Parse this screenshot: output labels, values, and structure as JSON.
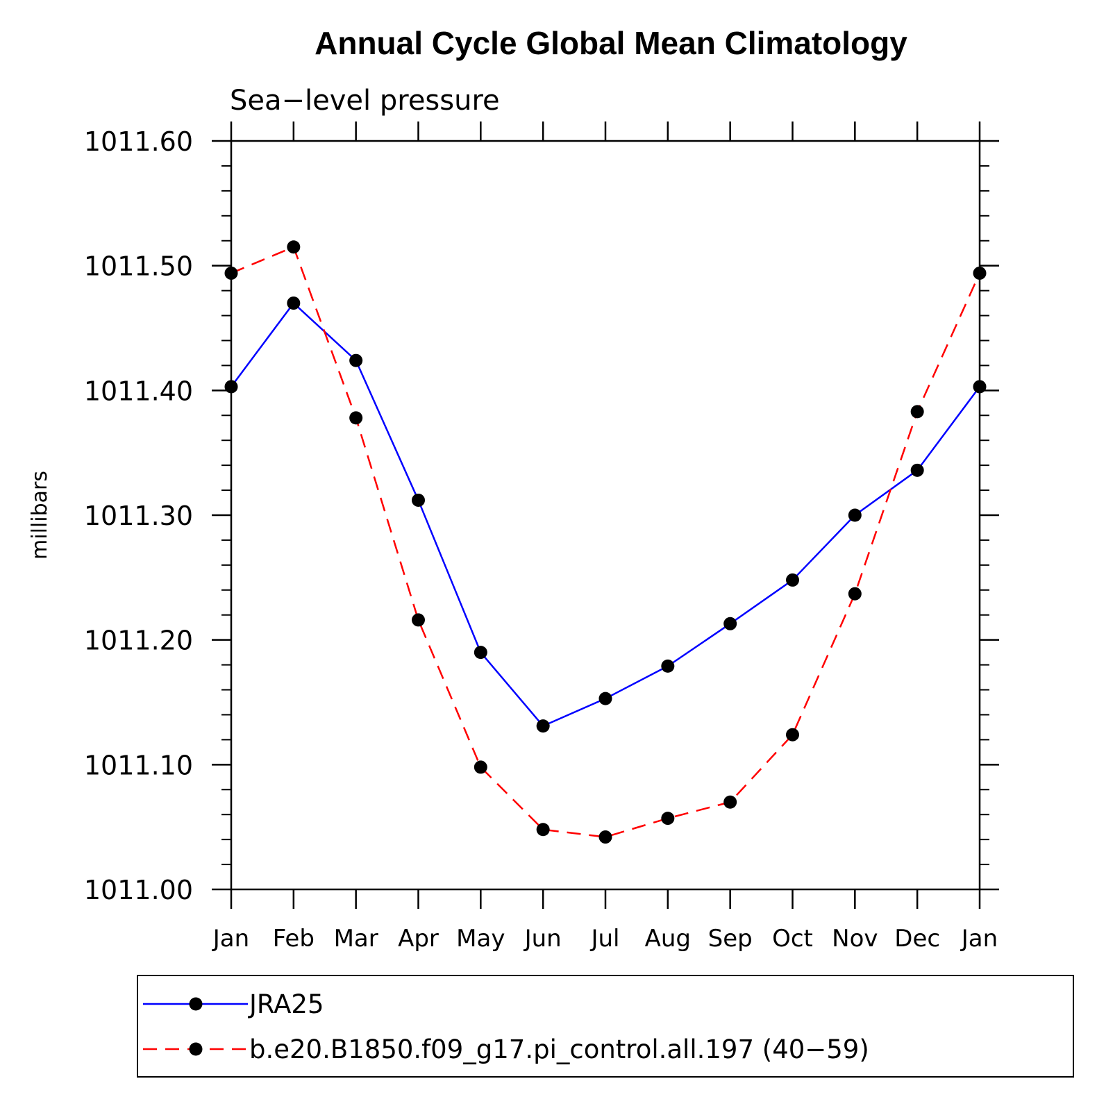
{
  "chart_data": {
    "type": "line",
    "title": "Annual Cycle Global Mean Climatology",
    "subtitle": "Sea−level pressure",
    "xlabel": "",
    "ylabel": "millibars",
    "categories": [
      "Jan",
      "Feb",
      "Mar",
      "Apr",
      "May",
      "Jun",
      "Jul",
      "Aug",
      "Sep",
      "Oct",
      "Nov",
      "Dec",
      "Jan"
    ],
    "ylim": [
      1011.0,
      1011.6
    ],
    "yticks": [
      "1011.00",
      "1011.10",
      "1011.20",
      "1011.30",
      "1011.40",
      "1011.50",
      "1011.60"
    ],
    "grid": false,
    "legend_position": "bottom",
    "series": [
      {
        "name": "JRA25",
        "color": "#0000ff",
        "dash": "solid",
        "marker": "filled-circle",
        "values": [
          1011.403,
          1011.47,
          1011.424,
          1011.312,
          1011.19,
          1011.131,
          1011.153,
          1011.179,
          1011.213,
          1011.248,
          1011.3,
          1011.336,
          1011.403
        ]
      },
      {
        "name": "b.e20.B1850.f09_g17.pi_control.all.197 (40−59)",
        "color": "#ff0000",
        "dash": "dashed",
        "marker": "filled-circle",
        "values": [
          1011.494,
          1011.515,
          1011.378,
          1011.216,
          1011.098,
          1011.048,
          1011.042,
          1011.057,
          1011.07,
          1011.124,
          1011.237,
          1011.383,
          1011.494
        ]
      }
    ]
  }
}
